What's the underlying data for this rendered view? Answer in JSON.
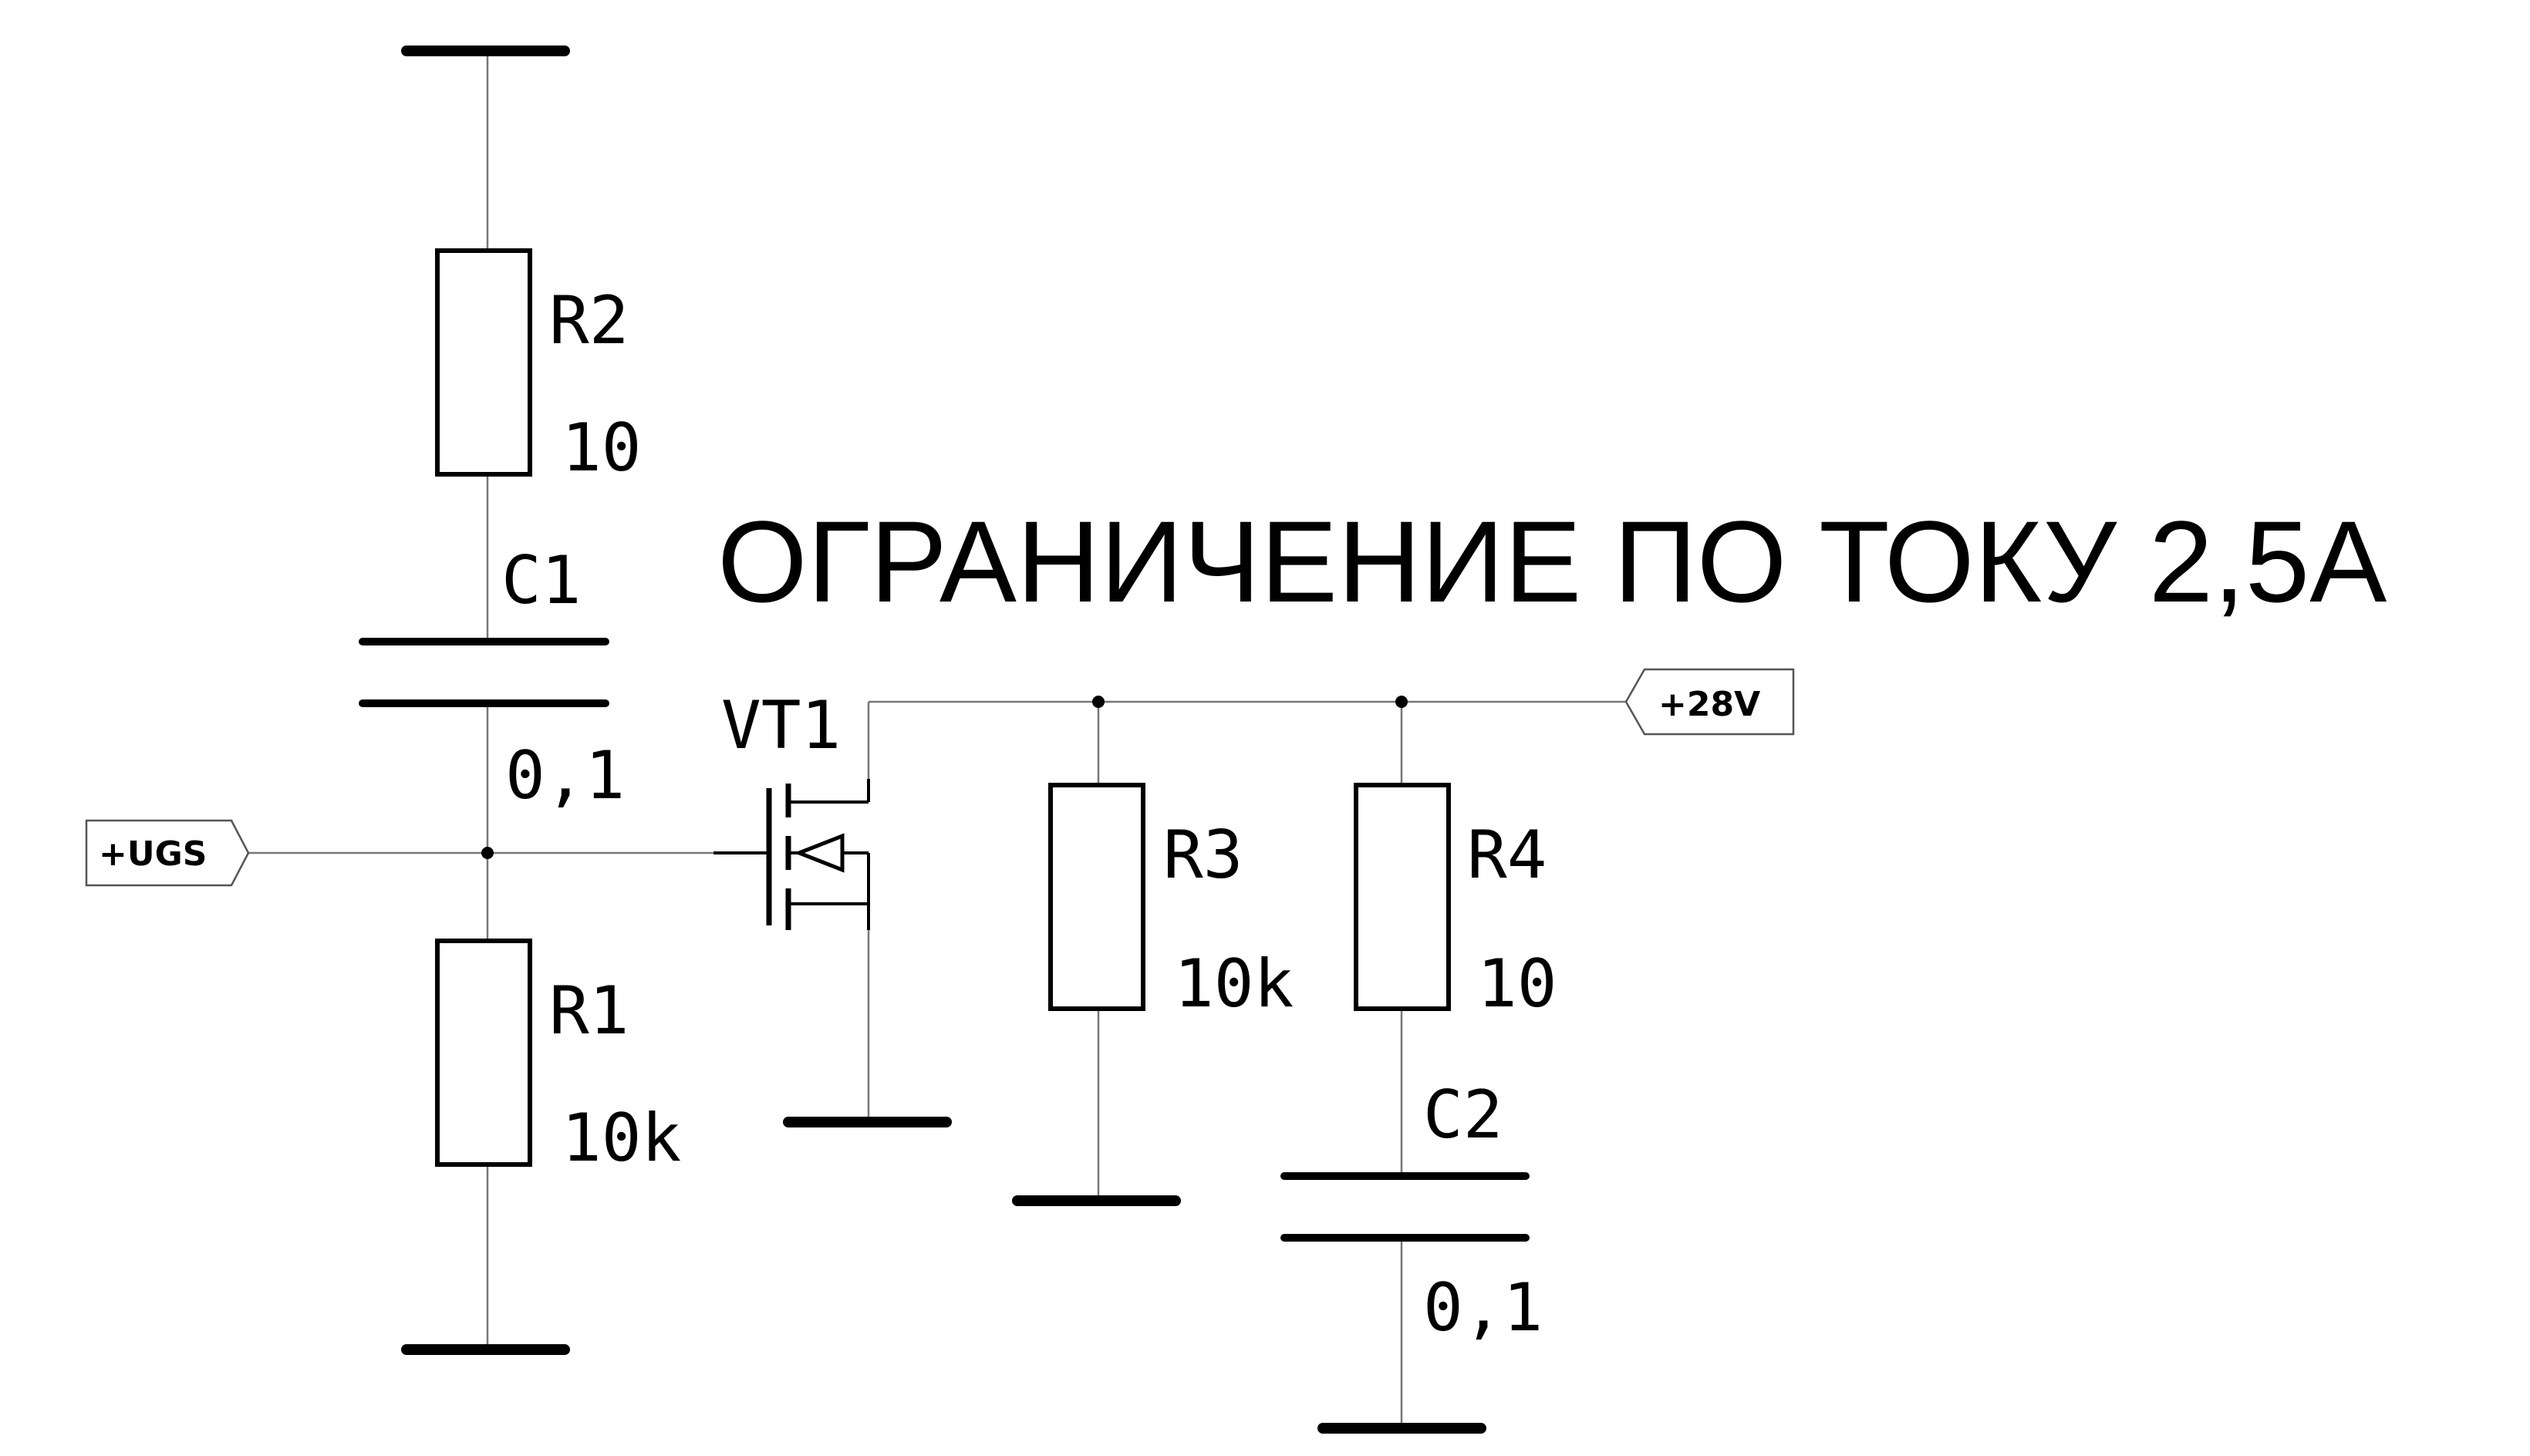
{
  "title": "ОГРАНИЧЕНИЕ ПО ТОКУ 2,5А",
  "components": {
    "R1": {
      "ref": "R1",
      "value": "10k"
    },
    "R2": {
      "ref": "R2",
      "value": "10"
    },
    "R3": {
      "ref": "R3",
      "value": "10k"
    },
    "R4": {
      "ref": "R4",
      "value": "10"
    },
    "C1": {
      "ref": "C1",
      "value": "0,1"
    },
    "C2": {
      "ref": "C2",
      "value": "0,1"
    },
    "VT1": {
      "ref": "VT1"
    }
  },
  "ports": {
    "ugs": "+UGS",
    "v28": "+28V"
  },
  "colors": {
    "wire": "#777777",
    "ink": "#000000",
    "background": "#ffffff"
  }
}
